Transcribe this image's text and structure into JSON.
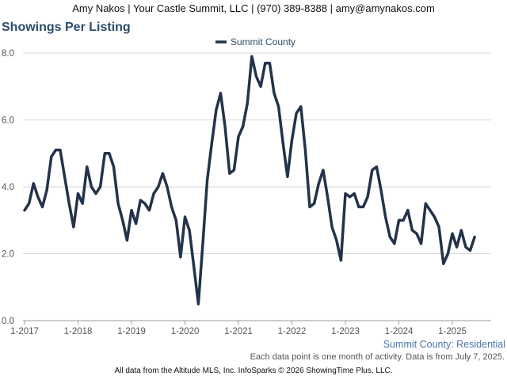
{
  "header": {
    "contact_line": "Amy Nakos | Your Castle Summit, LLC | (970) 389-8388 | amy@amynakos.com"
  },
  "chart_data": {
    "type": "line",
    "title": "Showings Per Listing",
    "subtitle": "Summit County: Residential",
    "note": "Each data point is one month of activity. Data is from July 7, 2025.",
    "footer": "All data from the Altitude MLS, Inc. InfoSparks © 2026 ShowingTime Plus, LLC.",
    "legend_position": "top-center",
    "grid": true,
    "ylim": [
      0,
      8
    ],
    "y_ticks": [
      "0.0",
      "2.0",
      "4.0",
      "6.0",
      "8.0"
    ],
    "x_ticks": [
      "1-2017",
      "1-2018",
      "1-2019",
      "1-2020",
      "1-2021",
      "1-2022",
      "1-2023",
      "1-2024",
      "1-2025"
    ],
    "x_start": "2017-01",
    "colors": {
      "series": "#22334a",
      "grid": "#d4d4d4",
      "title": "#2c4d6b",
      "subtitle": "#4a76a8"
    },
    "series": [
      {
        "name": "Summit County",
        "values": [
          3.3,
          3.5,
          4.1,
          3.7,
          3.4,
          3.9,
          4.9,
          5.1,
          5.1,
          4.3,
          3.5,
          2.8,
          3.8,
          3.5,
          4.6,
          4.0,
          3.8,
          4.0,
          5.0,
          5.0,
          4.6,
          3.5,
          3.0,
          2.4,
          3.3,
          2.9,
          3.6,
          3.5,
          3.3,
          3.8,
          4.0,
          4.4,
          4.0,
          3.4,
          3.0,
          1.9,
          3.1,
          2.7,
          1.6,
          0.5,
          2.3,
          4.2,
          5.3,
          6.3,
          6.8,
          5.8,
          4.4,
          4.5,
          5.5,
          5.8,
          6.5,
          7.9,
          7.3,
          7.0,
          7.7,
          7.7,
          6.8,
          6.4,
          5.3,
          4.3,
          5.4,
          6.2,
          6.4,
          5.1,
          3.4,
          3.5,
          4.1,
          4.5,
          3.7,
          2.8,
          2.4,
          1.8,
          3.8,
          3.7,
          3.8,
          3.4,
          3.4,
          3.7,
          4.5,
          4.6,
          3.9,
          3.1,
          2.5,
          2.3,
          3.0,
          3.0,
          3.3,
          2.7,
          2.6,
          2.3,
          3.5,
          3.3,
          3.1,
          2.8,
          1.7,
          2.0,
          2.6,
          2.2,
          2.7,
          2.2,
          2.1,
          2.5
        ]
      }
    ]
  }
}
